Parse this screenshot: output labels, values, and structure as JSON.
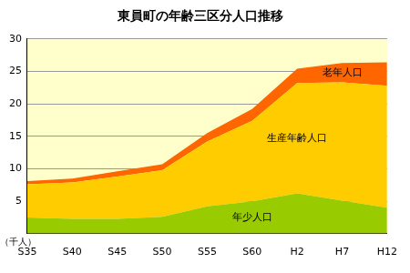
{
  "chart_data": {
    "type": "area",
    "title": "東員町の年齢三区分人口推移",
    "y_label": "（千人）",
    "categories": [
      "S35",
      "S40",
      "S45",
      "S50",
      "S55",
      "S60",
      "H2",
      "H7",
      "H12"
    ],
    "series": [
      {
        "name": "年少人口",
        "color": "#99cc00",
        "values": [
          2.5,
          2.3,
          2.3,
          2.6,
          4.2,
          5.0,
          6.2,
          5.1,
          4.0
        ]
      },
      {
        "name": "生産年齢人口",
        "color": "#ffcc00",
        "values": [
          5.1,
          5.6,
          6.5,
          7.2,
          10.0,
          12.4,
          17.0,
          18.2,
          18.8
        ]
      },
      {
        "name": "老年人口",
        "color": "#ff6600",
        "values": [
          0.5,
          0.6,
          0.8,
          0.9,
          1.3,
          1.8,
          2.2,
          3.0,
          3.6
        ]
      }
    ],
    "stacked": true,
    "ylim": [
      0,
      30
    ],
    "yticks": [
      5,
      10,
      15,
      20,
      25,
      30
    ],
    "grid": true
  }
}
